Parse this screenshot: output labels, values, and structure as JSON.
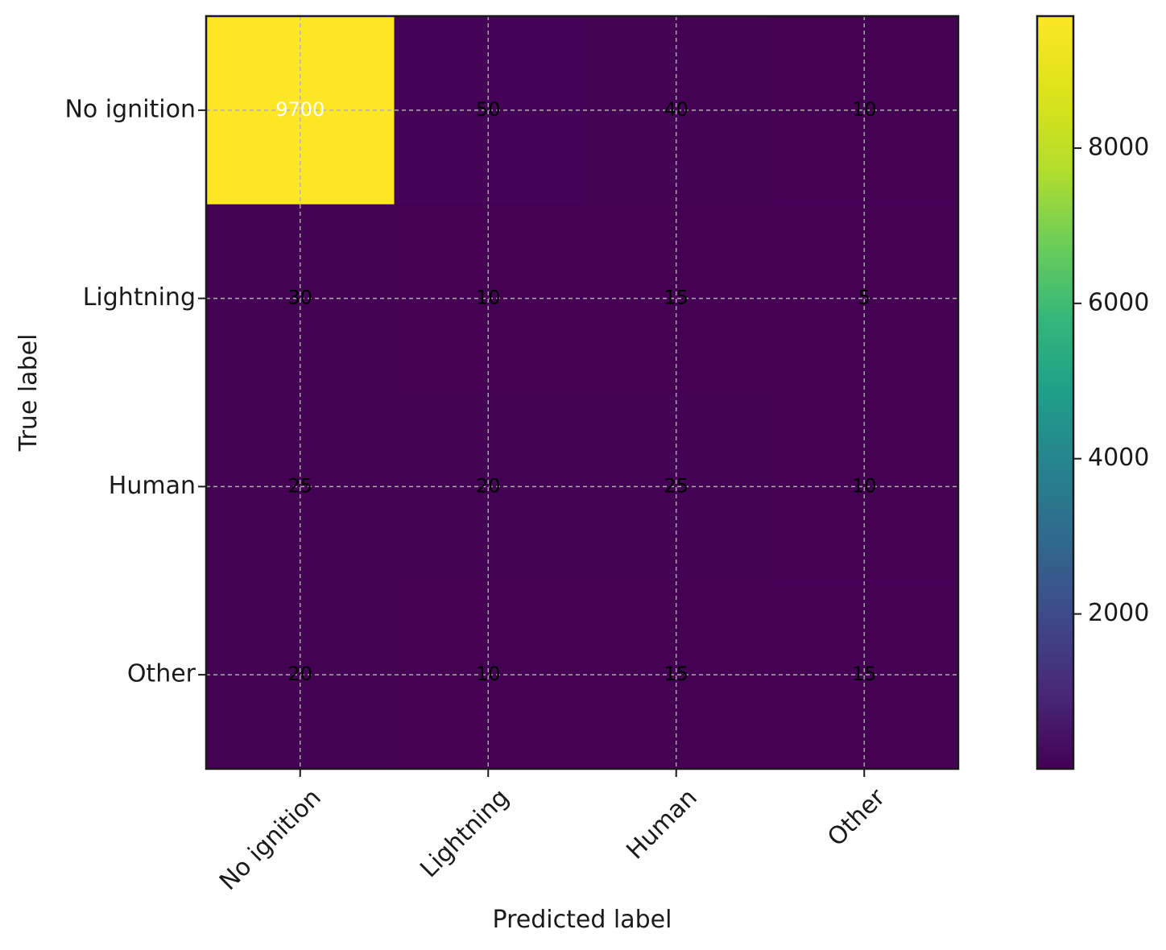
{
  "chart_data": {
    "type": "heatmap",
    "title": "",
    "xlabel": "Predicted label",
    "ylabel": "True label",
    "x_categories": [
      "No ignition",
      "Lightning",
      "Human",
      "Other"
    ],
    "y_categories": [
      "No ignition",
      "Lightning",
      "Human",
      "Other"
    ],
    "values": [
      [
        9700,
        50,
        40,
        10
      ],
      [
        30,
        10,
        15,
        5
      ],
      [
        25,
        20,
        25,
        10
      ],
      [
        20,
        10,
        15,
        15
      ]
    ],
    "colormap": "viridis",
    "colorbar": {
      "range": [
        5,
        9700
      ],
      "ticks": [
        2000,
        4000,
        6000,
        8000
      ]
    },
    "grid": true,
    "colors": {
      "low": "#440154",
      "high": "#fde725",
      "grid": "#b0b0b0"
    }
  }
}
